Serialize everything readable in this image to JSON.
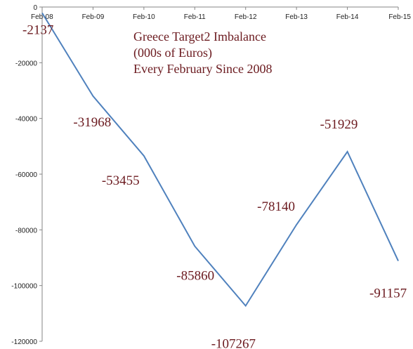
{
  "chart_data": {
    "type": "line",
    "title_lines": [
      "Greece Target2 Imbalance",
      "(000s of Euros)",
      "Every February Since 2008"
    ],
    "categories": [
      "Feb-08",
      "Feb-09",
      "Feb-10",
      "Feb-11",
      "Feb-12",
      "Feb-13",
      "Feb-14",
      "Feb-15"
    ],
    "values": [
      -2137,
      -31968,
      -53455,
      -85860,
      -107267,
      -78140,
      -51929,
      -91157
    ],
    "data_labels": [
      "-2137",
      "-31968",
      "-53455",
      "-85860",
      "-107267",
      "-78140",
      "-51929",
      "-91157"
    ],
    "y_ticks": [
      0,
      -20000,
      -40000,
      -60000,
      -80000,
      -100000,
      -120000
    ],
    "y_tick_labels": [
      "0",
      "-20000",
      "-40000",
      "-60000",
      "-80000",
      "-100000",
      "-120000"
    ],
    "ylim": [
      -120000,
      0
    ],
    "xlabel": "",
    "ylabel": "",
    "grid": false,
    "line_color": "#4f81bd",
    "label_color": "#6b1a1f",
    "axis_color": "#868686"
  }
}
